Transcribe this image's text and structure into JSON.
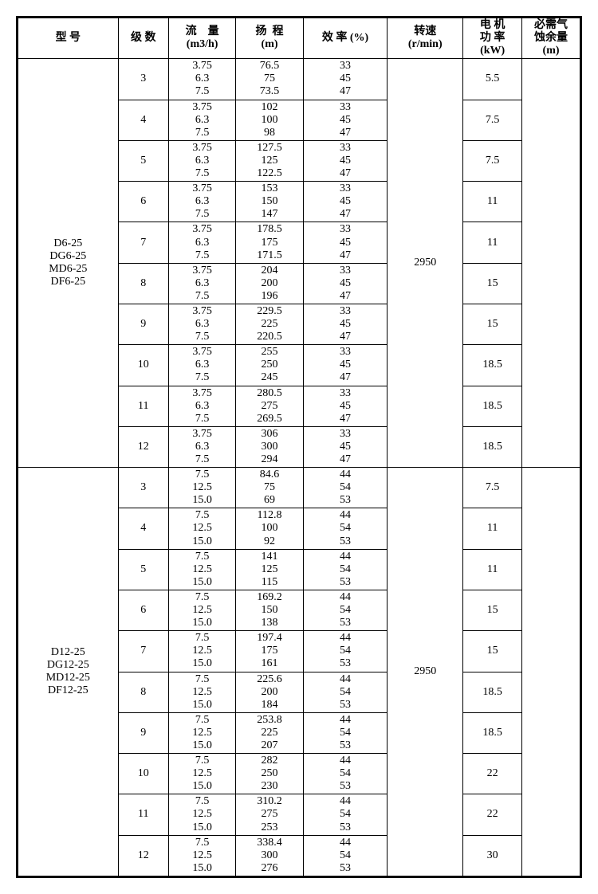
{
  "headers": {
    "model": "型  号",
    "stages": "级  数",
    "flow": "流    量\n(m3/h)",
    "head": "扬  程\n(m)",
    "efficiency": "效   率 (%)",
    "speed": "转速\n(r/min)",
    "power": "电 机\n功 率\n(kW)",
    "npsh": "必需气\n蚀余量\n(m)"
  },
  "groups": [
    {
      "model": "D6-25\nDG6-25\nMD6-25\nDF6-25",
      "speed": "2950",
      "npsh": "",
      "rows": [
        {
          "stage": "3",
          "flow": "3.75\n6.3\n7.5",
          "head": "76.5\n75\n73.5",
          "eff": "33\n45\n47",
          "power": "5.5"
        },
        {
          "stage": "4",
          "flow": "3.75\n6.3\n7.5",
          "head": "102\n100\n98",
          "eff": "33\n45\n47",
          "power": "7.5"
        },
        {
          "stage": "5",
          "flow": "3.75\n6.3\n7.5",
          "head": "127.5\n125\n122.5",
          "eff": "33\n45\n47",
          "power": "7.5"
        },
        {
          "stage": "6",
          "flow": "3.75\n6.3\n7.5",
          "head": "153\n150\n147",
          "eff": "33\n45\n47",
          "power": "11"
        },
        {
          "stage": "7",
          "flow": "3.75\n6.3\n7.5",
          "head": "178.5\n175\n171.5",
          "eff": "33\n45\n47",
          "power": "11"
        },
        {
          "stage": "8",
          "flow": "3.75\n6.3\n7.5",
          "head": "204\n200\n196",
          "eff": "33\n45\n47",
          "power": "15"
        },
        {
          "stage": "9",
          "flow": "3.75\n6.3\n7.5",
          "head": "229.5\n225\n220.5",
          "eff": "33\n45\n47",
          "power": "15"
        },
        {
          "stage": "10",
          "flow": "3.75\n6.3\n7.5",
          "head": "255\n250\n245",
          "eff": "33\n45\n47",
          "power": "18.5"
        },
        {
          "stage": "11",
          "flow": "3.75\n6.3\n7.5",
          "head": "280.5\n275\n269.5",
          "eff": "33\n45\n47",
          "power": "18.5"
        },
        {
          "stage": "12",
          "flow": "3.75\n6.3\n7.5",
          "head": "306\n300\n294",
          "eff": "33\n45\n47",
          "power": "18.5"
        }
      ]
    },
    {
      "model": "D12-25\nDG12-25\nMD12-25\nDF12-25",
      "speed": "2950",
      "npsh": "",
      "rows": [
        {
          "stage": "3",
          "flow": "7.5\n12.5\n15.0",
          "head": "84.6\n75\n69",
          "eff": "44\n54\n53",
          "power": "7.5"
        },
        {
          "stage": "4",
          "flow": "7.5\n12.5\n15.0",
          "head": "112.8\n100\n92",
          "eff": "44\n54\n53",
          "power": "11"
        },
        {
          "stage": "5",
          "flow": "7.5\n12.5\n15.0",
          "head": "141\n125\n115",
          "eff": "44\n54\n53",
          "power": "11"
        },
        {
          "stage": "6",
          "flow": "7.5\n12.5\n15.0",
          "head": "169.2\n150\n138",
          "eff": "44\n54\n53",
          "power": "15"
        },
        {
          "stage": "7",
          "flow": "7.5\n12.5\n15.0",
          "head": "197.4\n175\n161",
          "eff": "44\n54\n53",
          "power": "15"
        },
        {
          "stage": "8",
          "flow": "7.5\n12.5\n15.0",
          "head": "225.6\n200\n184",
          "eff": "44\n54\n53",
          "power": "18.5"
        },
        {
          "stage": "9",
          "flow": "7.5\n12.5\n15.0",
          "head": "253.8\n225\n207",
          "eff": "44\n54\n53",
          "power": "18.5"
        },
        {
          "stage": "10",
          "flow": "7.5\n12.5\n15.0",
          "head": "282\n250\n230",
          "eff": "44\n54\n53",
          "power": "22"
        },
        {
          "stage": "11",
          "flow": "7.5\n12.5\n15.0",
          "head": "310.2\n275\n253",
          "eff": "44\n54\n53",
          "power": "22"
        },
        {
          "stage": "12",
          "flow": "7.5\n12.5\n15.0",
          "head": "338.4\n300\n276",
          "eff": "44\n54\n53",
          "power": "30"
        }
      ]
    }
  ]
}
